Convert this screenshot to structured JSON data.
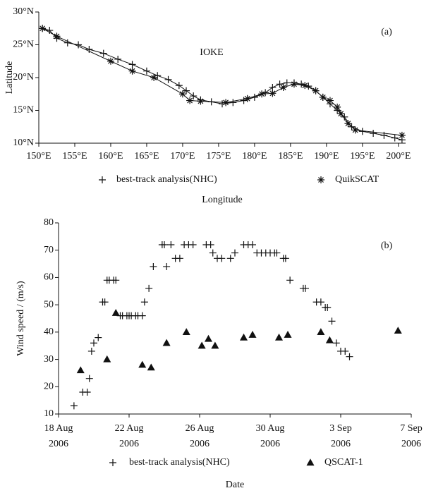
{
  "chart_data": [
    {
      "type": "line",
      "annotation": "IOKE",
      "panel_label": "(a)",
      "x_label": "Longitude",
      "y_label": "Latitude",
      "grid": false,
      "xlim": [
        150,
        201
      ],
      "ylim": [
        10,
        30
      ],
      "xticks": [
        {
          "value": 150,
          "label": "150°E"
        },
        {
          "value": 155,
          "label": "155°E"
        },
        {
          "value": 160,
          "label": "160°E"
        },
        {
          "value": 165,
          "label": "165°E"
        },
        {
          "value": 170,
          "label": "170°E"
        },
        {
          "value": 175,
          "label": "175°E"
        },
        {
          "value": 180,
          "label": "180°E"
        },
        {
          "value": 185,
          "label": "185°E"
        },
        {
          "value": 190,
          "label": "190°E"
        },
        {
          "value": 195,
          "label": "195°E"
        },
        {
          "value": 200,
          "label": "200°E"
        }
      ],
      "yticks": [
        {
          "value": 10,
          "label": "10°N"
        },
        {
          "value": 15,
          "label": "15°N"
        },
        {
          "value": 20,
          "label": "20°N"
        },
        {
          "value": 25,
          "label": "25°N"
        },
        {
          "value": 30,
          "label": "30°N"
        }
      ],
      "series": [
        {
          "name": "best-track analysis(NHC)",
          "color": "#111111",
          "marker": "plus",
          "x": [
            150.5,
            151.5,
            152.5,
            154,
            155.5,
            157,
            159,
            161,
            163,
            165,
            166.5,
            168,
            169.5,
            170.5,
            171.5,
            172.5,
            174,
            175.5,
            177,
            178.5,
            180,
            181.5,
            182.5,
            183.5,
            184.5,
            185.5,
            186.5,
            187.5,
            188.5,
            189.5,
            190.5,
            191.5,
            192.5,
            193.5,
            195,
            196.5,
            198,
            199.5,
            200.5
          ],
          "y": [
            27.5,
            27.2,
            26,
            25.3,
            25,
            24.3,
            23.7,
            22.8,
            22,
            21,
            20.3,
            19.7,
            18.8,
            18,
            17.2,
            16.6,
            16.3,
            16,
            16.2,
            16.5,
            17,
            17.7,
            18.5,
            19,
            19.2,
            19.2,
            19,
            18.7,
            18,
            17,
            16,
            15,
            14,
            12.5,
            11.8,
            11.5,
            11.2,
            10.8,
            10.5
          ]
        },
        {
          "name": "QuikSCAT",
          "color": "#111111",
          "marker": "star",
          "x": [
            150.5,
            152.5,
            160,
            163,
            166,
            170,
            171,
            172.5,
            176,
            179,
            181,
            182.5,
            184,
            185.5,
            187,
            188.5,
            189.5,
            190.5,
            191.5,
            192,
            193,
            194,
            200.5
          ],
          "y": [
            27.5,
            26.3,
            22.5,
            21,
            20,
            17.5,
            16.5,
            16.4,
            16.2,
            16.8,
            17.5,
            17.6,
            18.5,
            19,
            18.8,
            18,
            17,
            16.5,
            15.5,
            14.5,
            13,
            12,
            11.2
          ]
        }
      ]
    },
    {
      "type": "scatter",
      "panel_label": "(b)",
      "x_label": "Date",
      "y_label": "Wind speed / (m/s)",
      "grid": false,
      "xlim": [
        "2006-08-18",
        "2006-09-07"
      ],
      "ylim": [
        10,
        80
      ],
      "xticks": [
        {
          "value": "2006-08-18",
          "label": "18 Aug 2006"
        },
        {
          "value": "2006-08-22",
          "label": "22 Aug 2006"
        },
        {
          "value": "2006-08-26",
          "label": "26 Aug 2006"
        },
        {
          "value": "2006-08-30",
          "label": "30 Aug 2006"
        },
        {
          "value": "2006-09-03",
          "label": "3 Sep 2006"
        },
        {
          "value": "2006-09-07",
          "label": "7 Sep 2006"
        }
      ],
      "yticks": [
        10,
        20,
        30,
        40,
        50,
        60,
        70,
        80
      ],
      "series": [
        {
          "name": "best-track analysis(NHC)",
          "color": "#111111",
          "marker": "plus",
          "x": [
            "2006-08-18T21:00",
            "2006-08-19T09:00",
            "2006-08-19T15:00",
            "2006-08-19T18:00",
            "2006-08-19T21:00",
            "2006-08-20T00:00",
            "2006-08-20T06:00",
            "2006-08-20T12:00",
            "2006-08-20T15:00",
            "2006-08-20T18:00",
            "2006-08-20T21:00",
            "2006-08-21T03:00",
            "2006-08-21T06:00",
            "2006-08-21T12:00",
            "2006-08-21T15:00",
            "2006-08-21T21:00",
            "2006-08-22T00:00",
            "2006-08-22T03:00",
            "2006-08-22T09:00",
            "2006-08-22T12:00",
            "2006-08-22T18:00",
            "2006-08-22T21:00",
            "2006-08-23T03:00",
            "2006-08-23T09:00",
            "2006-08-23T21:00",
            "2006-08-24T00:00",
            "2006-08-24T03:00",
            "2006-08-24T09:00",
            "2006-08-24T15:00",
            "2006-08-24T21:00",
            "2006-08-25T03:00",
            "2006-08-25T09:00",
            "2006-08-25T15:00",
            "2006-08-26T09:00",
            "2006-08-26T15:00",
            "2006-08-26T18:00",
            "2006-08-27T00:00",
            "2006-08-27T06:00",
            "2006-08-27T18:00",
            "2006-08-28T00:00",
            "2006-08-28T12:00",
            "2006-08-28T18:00",
            "2006-08-29T00:00",
            "2006-08-29T06:00",
            "2006-08-29T12:00",
            "2006-08-29T18:00",
            "2006-08-30T00:00",
            "2006-08-30T06:00",
            "2006-08-30T09:00",
            "2006-08-30T18:00",
            "2006-08-30T21:00",
            "2006-08-31T03:00",
            "2006-08-31T21:00",
            "2006-09-01T00:00",
            "2006-09-01T15:00",
            "2006-09-01T21:00",
            "2006-09-02T03:00",
            "2006-09-02T06:00",
            "2006-09-02T12:00",
            "2006-09-02T18:00",
            "2006-09-03T00:00",
            "2006-09-03T06:00",
            "2006-09-03T12:00"
          ],
          "y": [
            13,
            18,
            18,
            23,
            33,
            36,
            38,
            51,
            51,
            59,
            59,
            59,
            59,
            46,
            46,
            46,
            46,
            46,
            46,
            46,
            46,
            51,
            56,
            64,
            72,
            72,
            64,
            72,
            67,
            67,
            72,
            72,
            72,
            72,
            72,
            69,
            67,
            67,
            67,
            69,
            72,
            72,
            72,
            69,
            69,
            69,
            69,
            69,
            69,
            67,
            67,
            59,
            56,
            56,
            51,
            51,
            49,
            49,
            44,
            36,
            33,
            33,
            31
          ]
        },
        {
          "name": "QSCAT-1",
          "color": "#111111",
          "marker": "triangle",
          "x": [
            "2006-08-19T06:00",
            "2006-08-20T18:00",
            "2006-08-21T06:00",
            "2006-08-22T18:00",
            "2006-08-23T06:00",
            "2006-08-24T03:00",
            "2006-08-25T06:00",
            "2006-08-26T03:00",
            "2006-08-26T12:00",
            "2006-08-26T21:00",
            "2006-08-28T12:00",
            "2006-08-29T00:00",
            "2006-08-30T12:00",
            "2006-08-31T00:00",
            "2006-09-01T21:00",
            "2006-09-02T09:00",
            "2006-09-06T06:00"
          ],
          "y": [
            26,
            30,
            47,
            28,
            27,
            36,
            40,
            35,
            37.5,
            35,
            38,
            39,
            38,
            39,
            40,
            37,
            40.5
          ]
        }
      ]
    }
  ]
}
